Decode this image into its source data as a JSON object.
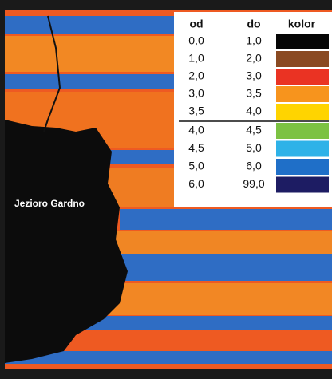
{
  "map_label": "Jezioro Gardno",
  "legend": {
    "headers": [
      "od",
      "do",
      "kolor"
    ],
    "rows": [
      {
        "from": "0,0",
        "to": "1,0",
        "color": "#050505"
      },
      {
        "from": "1,0",
        "to": "2,0",
        "color": "#8a4a22"
      },
      {
        "from": "2,0",
        "to": "3,0",
        "color": "#ea3323"
      },
      {
        "from": "3,0",
        "to": "3,5",
        "color": "#f7941d"
      },
      {
        "from": "3,5",
        "to": "4,0",
        "color": "#ffd400"
      },
      {
        "from": "4,0",
        "to": "4,5",
        "color": "#7cc242"
      },
      {
        "from": "4,5",
        "to": "5,0",
        "color": "#2eb2e8"
      },
      {
        "from": "5,0",
        "to": "6,0",
        "color": "#1f6fc8"
      },
      {
        "from": "6,0",
        "to": "99,0",
        "color": "#1d1c63"
      }
    ]
  }
}
